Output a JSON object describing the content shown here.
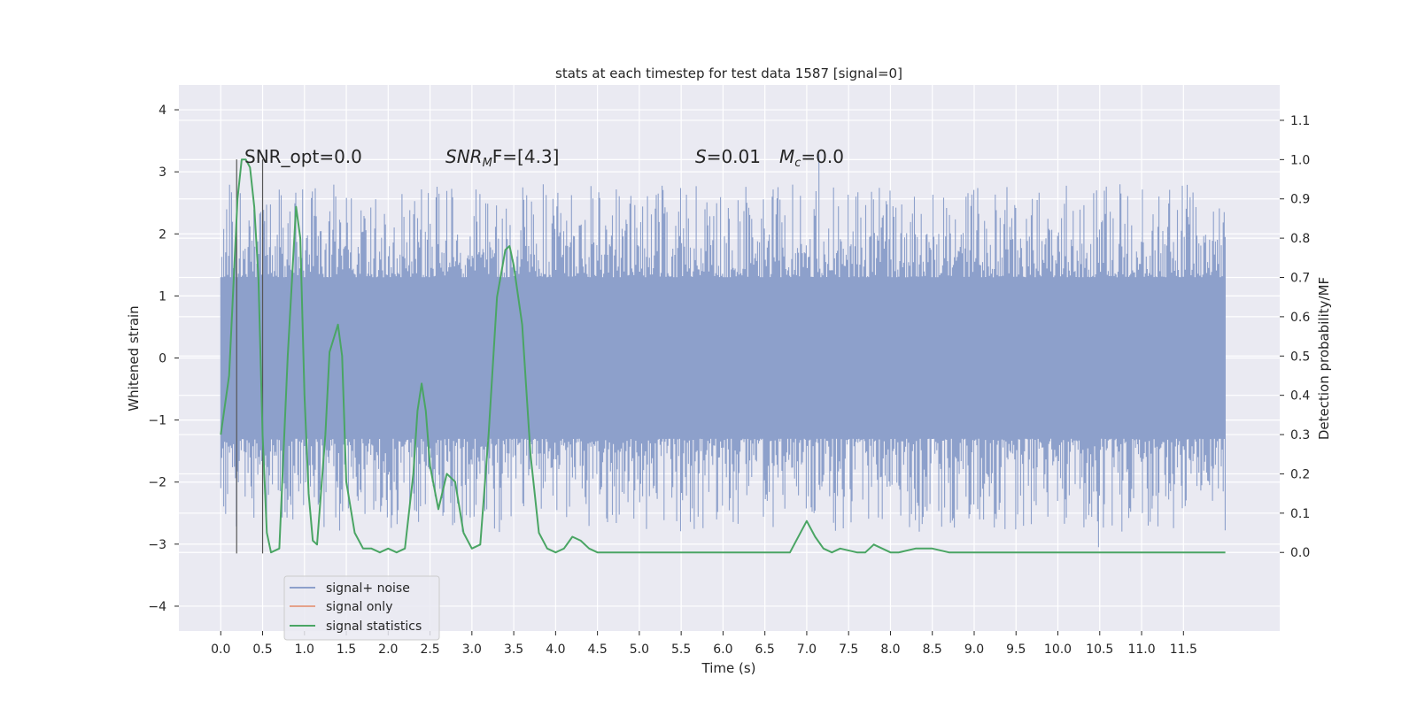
{
  "chart_data": {
    "type": "line",
    "title": "stats at each timestep for test data 1587 [signal=0]",
    "xlabel": "Time (s)",
    "ylabel": "Whitened strain",
    "y2label": "Detection probability/MF",
    "xlim": [
      -0.5,
      12.65
    ],
    "ylim": [
      -4.4,
      4.4
    ],
    "y2lim": [
      -0.2,
      1.19
    ],
    "grid": true,
    "legend_position": "lower-left",
    "x_ticks": [
      "0.0",
      "0.5",
      "1.0",
      "1.5",
      "2.0",
      "2.5",
      "3.0",
      "3.5",
      "4.0",
      "4.5",
      "5.0",
      "5.5",
      "6.0",
      "6.5",
      "7.0",
      "7.5",
      "8.0",
      "8.5",
      "9.0",
      "9.5",
      "10.0",
      "10.5",
      "11.0",
      "11.5"
    ],
    "y_ticks": [
      "4",
      "3",
      "2",
      "1",
      "0",
      "−1",
      "−2",
      "−3",
      "−4"
    ],
    "y2_ticks": [
      "1.1",
      "1.0",
      "0.9",
      "0.8",
      "0.7",
      "0.6",
      "0.5",
      "0.4",
      "0.3",
      "0.2",
      "0.1",
      "0.0"
    ],
    "annotations": {
      "snr_opt": "SNR_opt=0.0",
      "snr_mf_sym": "SNR",
      "snr_mf_sub": "M",
      "snr_mf_rest": "F=[4.3]",
      "s_sym": "S",
      "s_rest": "=0.01",
      "mc_sym": "M",
      "mc_sub": "c",
      "mc_rest": "=0.0"
    },
    "markers_x": [
      0.19,
      0.5
    ],
    "noise_range": [
      0.0,
      12.0
    ],
    "noise_envelope": {
      "core": 1.3,
      "extreme_max": 4.1,
      "extreme_min": -4.0
    },
    "series": [
      {
        "name": "signal+ noise",
        "color": "#8da0cb"
      },
      {
        "name": "signal only",
        "color": "#e5a28a",
        "values": []
      },
      {
        "name": "signal statistics",
        "color": "#4aa564",
        "x": [
          0.0,
          0.1,
          0.2,
          0.25,
          0.3,
          0.35,
          0.4,
          0.45,
          0.5,
          0.55,
          0.6,
          0.7,
          0.8,
          0.9,
          0.95,
          1.0,
          1.05,
          1.1,
          1.15,
          1.25,
          1.3,
          1.4,
          1.45,
          1.5,
          1.6,
          1.7,
          1.8,
          1.9,
          2.0,
          2.1,
          2.2,
          2.3,
          2.35,
          2.4,
          2.45,
          2.5,
          2.6,
          2.7,
          2.8,
          2.9,
          3.0,
          3.1,
          3.2,
          3.3,
          3.4,
          3.45,
          3.5,
          3.6,
          3.7,
          3.8,
          3.9,
          4.0,
          4.1,
          4.2,
          4.3,
          4.4,
          4.5,
          4.6,
          4.7,
          4.8,
          5.0,
          5.5,
          6.0,
          6.2,
          6.5,
          6.8,
          7.0,
          7.1,
          7.2,
          7.3,
          7.4,
          7.6,
          7.7,
          7.8,
          8.0,
          8.1,
          8.3,
          8.5,
          8.7,
          9.0,
          10.0,
          11.0,
          11.5,
          11.8,
          12.0
        ],
        "values": [
          0.3,
          0.45,
          0.9,
          1.0,
          1.0,
          0.98,
          0.88,
          0.7,
          0.3,
          0.05,
          0.0,
          0.01,
          0.5,
          0.88,
          0.8,
          0.4,
          0.15,
          0.03,
          0.02,
          0.3,
          0.51,
          0.58,
          0.5,
          0.18,
          0.05,
          0.01,
          0.01,
          0.0,
          0.01,
          0.0,
          0.01,
          0.2,
          0.36,
          0.43,
          0.36,
          0.22,
          0.11,
          0.2,
          0.18,
          0.05,
          0.01,
          0.02,
          0.3,
          0.65,
          0.77,
          0.78,
          0.73,
          0.58,
          0.25,
          0.05,
          0.01,
          0.0,
          0.01,
          0.04,
          0.03,
          0.01,
          0.0,
          0.0,
          0.0,
          0.0,
          0.0,
          0.0,
          0.0,
          0.0,
          0.0,
          0.0,
          0.08,
          0.04,
          0.01,
          0.0,
          0.01,
          0.0,
          0.0,
          0.02,
          0.0,
          0.0,
          0.01,
          0.01,
          0.0,
          0.0,
          0.0,
          0.0,
          0.0,
          0.0,
          0.0
        ]
      }
    ]
  }
}
